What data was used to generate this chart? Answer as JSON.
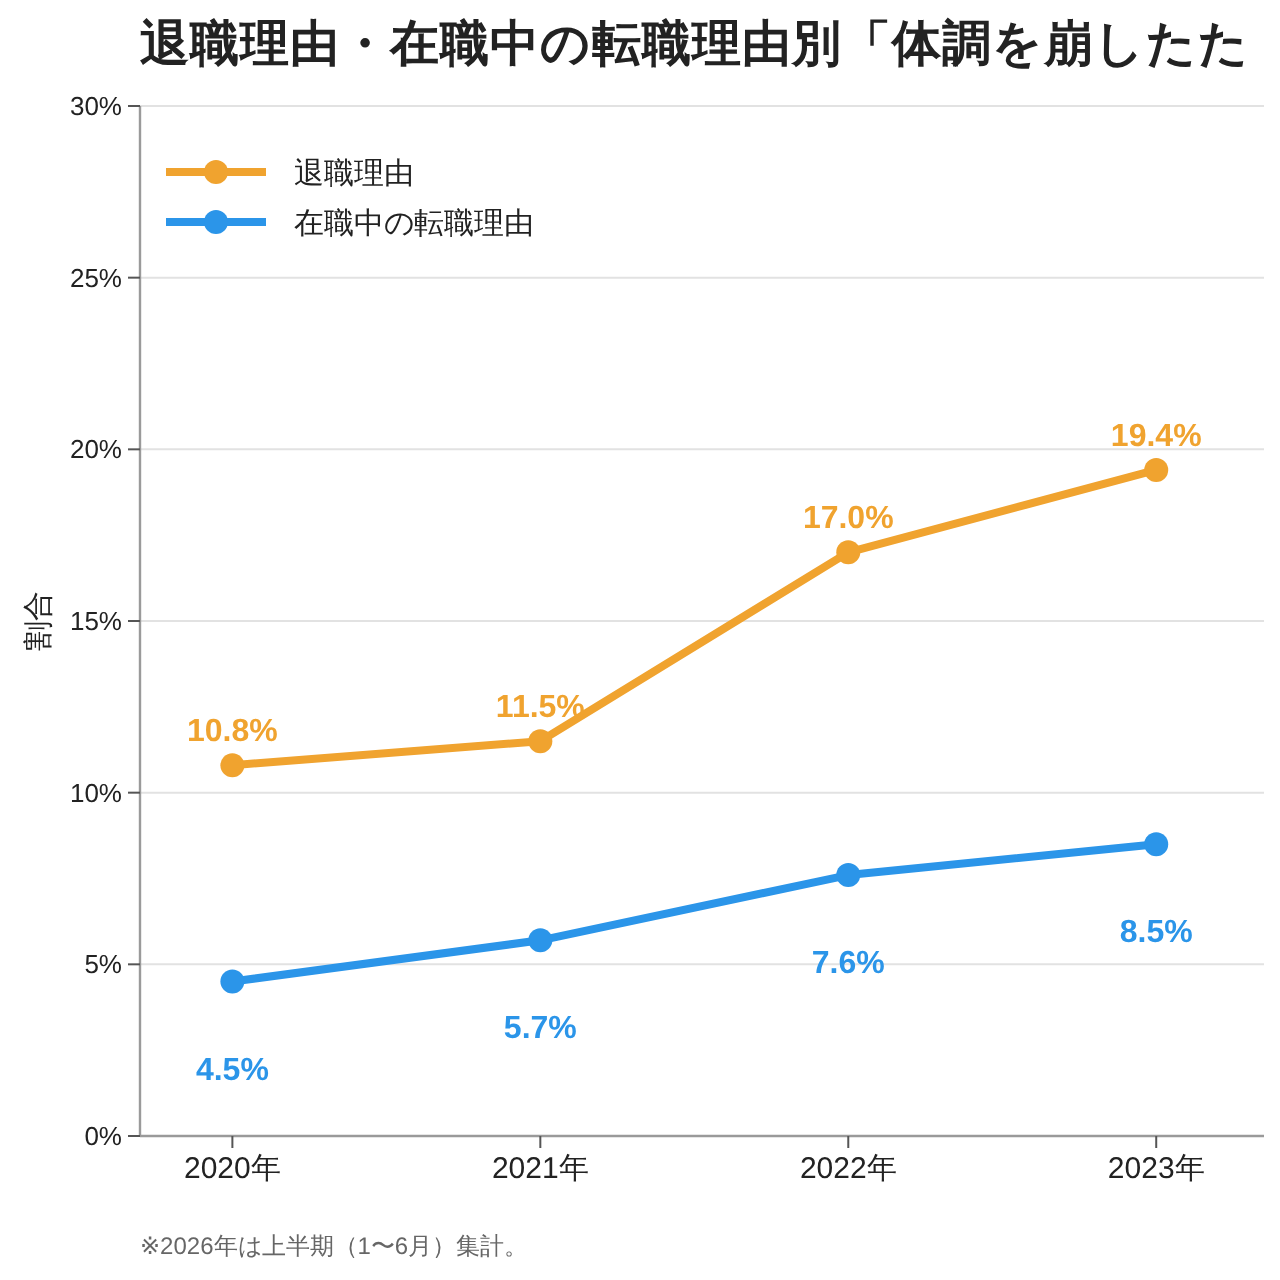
{
  "chart_data": {
    "type": "line",
    "title": "退職理由・在職中の転職理由別「体調を崩したた",
    "ylabel": "割合",
    "categories": [
      "2020年",
      "2021年",
      "2022年",
      "2023年"
    ],
    "series": [
      {
        "name": "退職理由",
        "color": "#f0a32f",
        "values": [
          10.8,
          11.5,
          17.0,
          19.4
        ],
        "value_labels": [
          "10.8%",
          "11.5%",
          "17.0%",
          "19.4%"
        ]
      },
      {
        "name": "在職中の転職理由",
        "color": "#2b95e9",
        "values": [
          4.5,
          5.7,
          7.6,
          8.5
        ],
        "value_labels": [
          "4.5%",
          "5.7%",
          "7.6%",
          "8.5%"
        ]
      }
    ],
    "ylim": [
      0,
      30
    ],
    "yticks": [
      {
        "value": 0,
        "label": "0%"
      },
      {
        "value": 5,
        "label": "5%"
      },
      {
        "value": 10,
        "label": "10%"
      },
      {
        "value": 15,
        "label": "15%"
      },
      {
        "value": 20,
        "label": "20%"
      },
      {
        "value": 25,
        "label": "25%"
      },
      {
        "value": 30,
        "label": "30%"
      }
    ],
    "grid": "y",
    "legend": "top left",
    "marker": "circle",
    "line_style": "solid",
    "annotations": [
      "※2026年は上半期（1〜6月）集計。"
    ]
  }
}
